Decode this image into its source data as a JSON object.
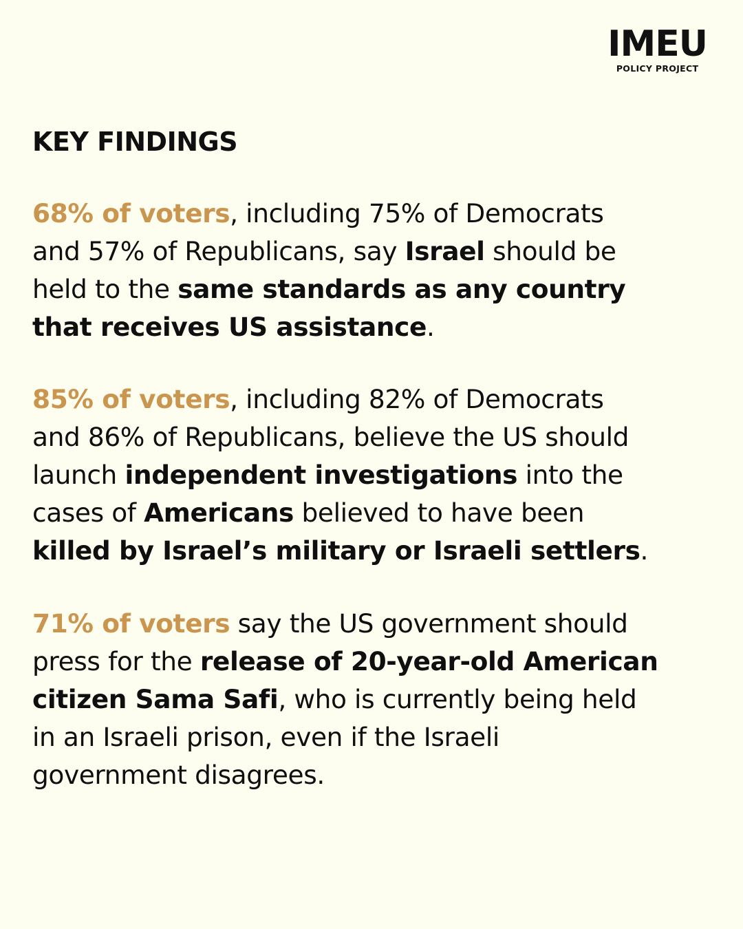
{
  "logo": {
    "main": "IMEU",
    "sub": "POLICY PROJECT"
  },
  "heading": "KEY FINDINGS",
  "colors": {
    "background": "#fdfdf0",
    "text": "#0f0f0f",
    "accent": "#c9954f"
  },
  "findings": [
    {
      "lines": [
        [
          {
            "text": "68% of voters",
            "style": "accent"
          },
          {
            "text": ", including 75% of Democrats",
            "style": "normal"
          }
        ],
        [
          {
            "text": "and 57% of Republicans, say ",
            "style": "normal"
          },
          {
            "text": "Israel",
            "style": "bold"
          },
          {
            "text": " should be",
            "style": "normal"
          }
        ],
        [
          {
            "text": "held to the ",
            "style": "normal"
          },
          {
            "text": "same standards as any country",
            "style": "bold"
          }
        ],
        [
          {
            "text": "that receives US assistance",
            "style": "bold"
          },
          {
            "text": ".",
            "style": "normal"
          }
        ]
      ]
    },
    {
      "lines": [
        [
          {
            "text": "85% of voters",
            "style": "accent"
          },
          {
            "text": ", including 82% of Democrats",
            "style": "normal"
          }
        ],
        [
          {
            "text": "and 86% of Republicans, believe the US should",
            "style": "normal"
          }
        ],
        [
          {
            "text": "launch ",
            "style": "normal"
          },
          {
            "text": "independent investigations",
            "style": "bold"
          },
          {
            "text": " into the",
            "style": "normal"
          }
        ],
        [
          {
            "text": "cases of ",
            "style": "normal"
          },
          {
            "text": "Americans",
            "style": "bold"
          },
          {
            "text": " believed to have been",
            "style": "normal"
          }
        ],
        [
          {
            "text": "killed by Israel’s military or Israeli settlers",
            "style": "bold"
          },
          {
            "text": ".",
            "style": "normal"
          }
        ]
      ]
    },
    {
      "lines": [
        [
          {
            "text": "71% of voters",
            "style": "accent"
          },
          {
            "text": " say the US government should",
            "style": "normal"
          }
        ],
        [
          {
            "text": "press for the ",
            "style": "normal"
          },
          {
            "text": "release of 20-year-old American",
            "style": "bold"
          }
        ],
        [
          {
            "text": "citizen Sama Safi",
            "style": "bold"
          },
          {
            "text": ", who is currently being held",
            "style": "normal"
          }
        ],
        [
          {
            "text": "in an Israeli prison, even if the Israeli",
            "style": "normal"
          }
        ],
        [
          {
            "text": "government disagrees.",
            "style": "normal"
          }
        ]
      ]
    }
  ]
}
